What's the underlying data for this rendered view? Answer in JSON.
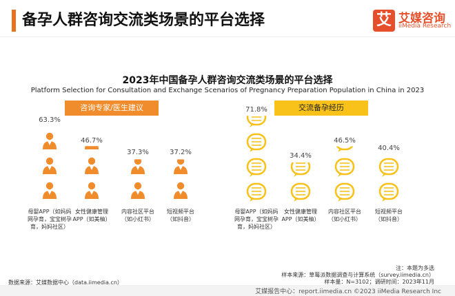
{
  "header": {
    "title": "备孕人群咨询交流类场景的平台选择"
  },
  "logo": {
    "mark": "艾",
    "name_cn": "艾媒咨询",
    "name_en": "iiMedia Research"
  },
  "colors": {
    "accent": "#e8731c",
    "orange": "#f08c2b",
    "yellow": "#f9c21a",
    "brand": "#e64f2b"
  },
  "chart_data": [
    {
      "type": "bar",
      "group": "咨询专家/医生建议",
      "title": "2023年中国备孕人群咨询交流类场景的平台选择",
      "subtitle": "Platform Selection for Consultation and Exchange Scenarios of Pregnancy Preparation Population in China in 2023",
      "categories": [
        "母婴APP（如妈妈\n网孕育，宝宝树孕\n育，妈妈社区）",
        "女性健康管理\nAPP（如美柚）",
        "内容社区平台\n（如小红书）",
        "短视频平台\n（如抖音）"
      ],
      "values": [
        63.3,
        46.7,
        37.3,
        37.2
      ],
      "value_labels": [
        "63.3%",
        "46.7%",
        "37.3%",
        "37.2%"
      ],
      "unit": "%",
      "icon": "person-icon",
      "color": "#f08c2b"
    },
    {
      "type": "bar",
      "group": "交流备孕经历",
      "categories": [
        "母婴APP（如妈妈\n网孕育，宝宝树孕\n育，妈妈社区）",
        "女性健康管理\nAPP（如美柚）",
        "内容社区平台\n（如小红书）",
        "短视频平台\n（如抖音）"
      ],
      "values": [
        71.8,
        34.4,
        46.5,
        40.4
      ],
      "value_labels": [
        "71.8%",
        "34.4%",
        "46.5%",
        "40.4%"
      ],
      "unit": "%",
      "icon": "chat-bubble-icon",
      "color": "#f9c21a"
    }
  ],
  "notes": {
    "multi": "注：本题为多选",
    "source_right": "样本来源：草莓派数据调查与计算系统（survey.iimedia.cn）",
    "sample": "样本量：N=3102；调研时间：2023年11月",
    "source_left": "数据来源：艾媒数据中心（data.iimedia.cn）"
  },
  "footer": {
    "text": "艾媒报告中心：report.iimedia.cn   ©2023  iiMedia Research  Inc"
  }
}
